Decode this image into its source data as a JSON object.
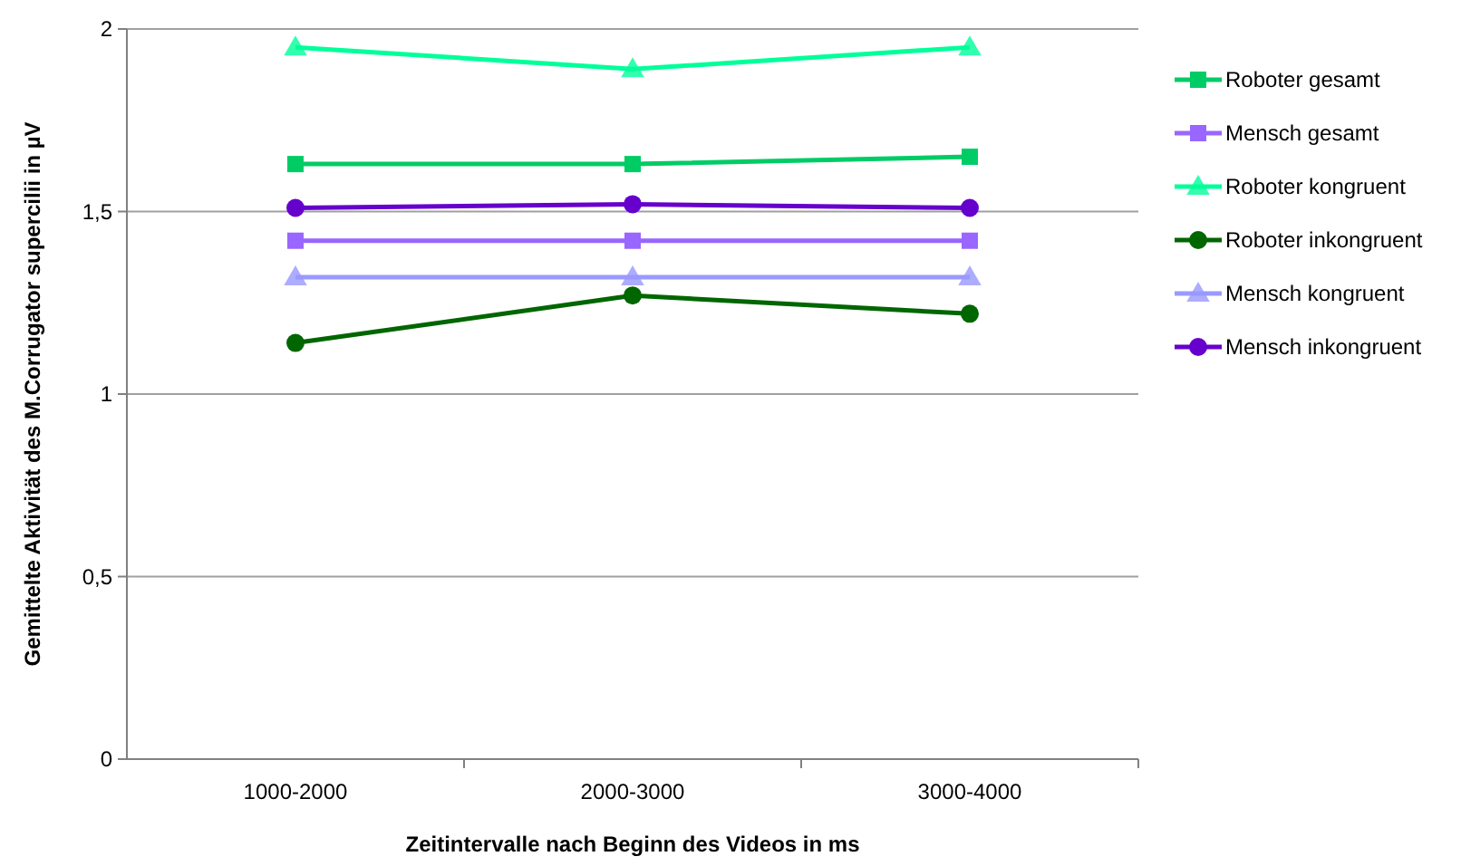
{
  "chart_data": {
    "type": "line",
    "xlabel": "Zeitintervalle nach Beginn des Videos in ms",
    "ylabel": "Gemittelte Aktivität des M.Corrugator supercilii in µV",
    "categories": [
      "1000-2000",
      "2000-3000",
      "3000-4000"
    ],
    "series": [
      {
        "name": "Roboter gesamt",
        "color": "#00cc66",
        "marker": "square",
        "values": [
          1.63,
          1.63,
          1.65
        ]
      },
      {
        "name": "Mensch gesamt",
        "color": "#9966ff",
        "marker": "square",
        "values": [
          1.42,
          1.42,
          1.42
        ]
      },
      {
        "name": "Roboter kongruent",
        "color": "#00ff99",
        "marker": "triangle",
        "values": [
          1.95,
          1.89,
          1.95
        ]
      },
      {
        "name": "Roboter inkongruent",
        "color": "#006600",
        "marker": "circle",
        "values": [
          1.14,
          1.27,
          1.22
        ]
      },
      {
        "name": "Mensch kongruent",
        "color": "#9999ff",
        "marker": "triangle",
        "values": [
          1.32,
          1.32,
          1.32
        ]
      },
      {
        "name": "Mensch inkongruent",
        "color": "#6600cc",
        "marker": "circle",
        "values": [
          1.51,
          1.52,
          1.51
        ]
      }
    ],
    "ylim": [
      0,
      2
    ],
    "yticks": [
      0,
      {
        "value": 0.5,
        "label": "0,5"
      },
      1,
      {
        "value": 1.5,
        "label": "1,5"
      },
      2
    ],
    "grid": "y",
    "legend": "right",
    "line_style": "solid"
  }
}
